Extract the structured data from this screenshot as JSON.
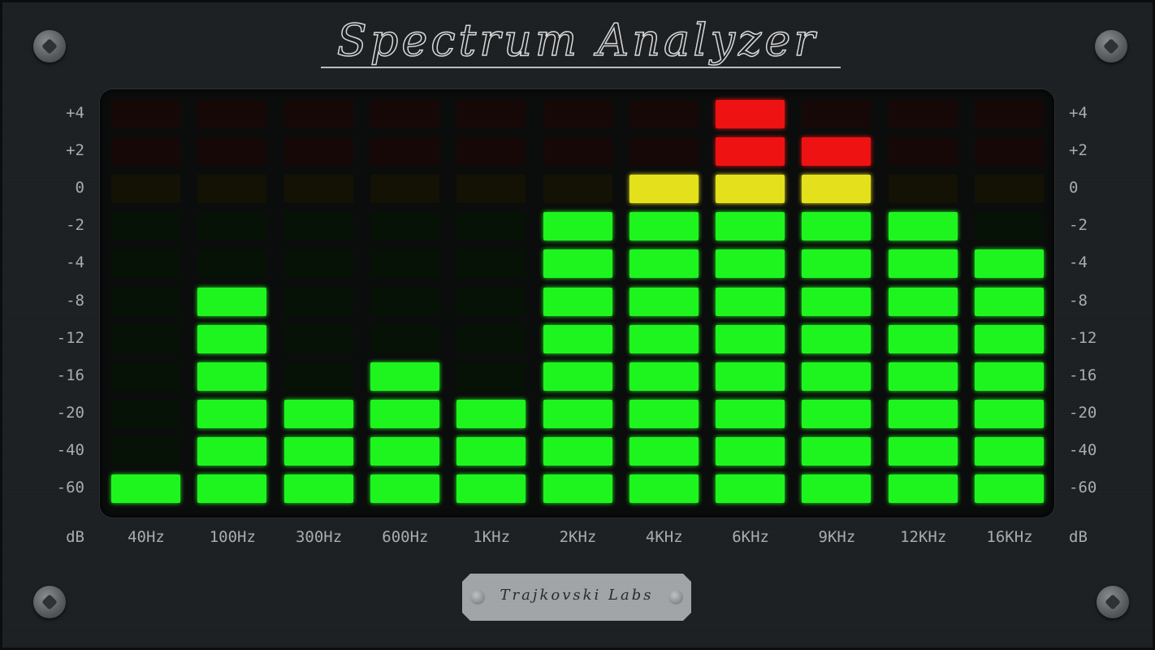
{
  "title": "Spectrum Analyzer",
  "brand_plate": "Trajkovski Labs",
  "db_unit": "dB",
  "db_scale": [
    "+4",
    "+2",
    "0",
    "-2",
    "-4",
    "-8",
    "-12",
    "-16",
    "-20",
    "-40",
    "-60"
  ],
  "bands": [
    {
      "label": "40Hz",
      "level": 1
    },
    {
      "label": "100Hz",
      "level": 6
    },
    {
      "label": "300Hz",
      "level": 3
    },
    {
      "label": "600Hz",
      "level": 4
    },
    {
      "label": "1KHz",
      "level": 3
    },
    {
      "label": "2KHz",
      "level": 8
    },
    {
      "label": "4KHz",
      "level": 9
    },
    {
      "label": "6KHz",
      "level": 11
    },
    {
      "label": "9KHz",
      "level": 10
    },
    {
      "label": "12KHz",
      "level": 8
    },
    {
      "label": "16KHz",
      "level": 7
    }
  ],
  "colors": {
    "green": "#1ef51e",
    "yellow": "#e4e01c",
    "red": "#ee1212"
  }
}
